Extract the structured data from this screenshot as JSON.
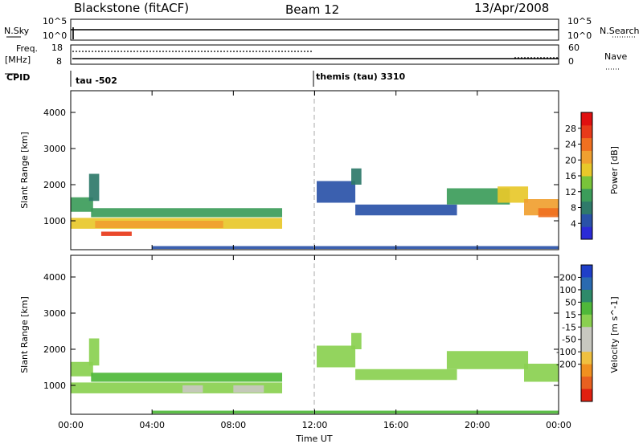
{
  "header": {
    "station": "Blackstone (fitACF)",
    "beam": "Beam 12",
    "date": "13/Apr/2008"
  },
  "summary_panels": {
    "nsky_label": "N.Sky",
    "nsky_ticks": [
      "10^5",
      "10^0"
    ],
    "nsearch_label": "N.Search",
    "nsearch_ticks": [
      "10^5",
      "10^0"
    ],
    "freq_label": "Freq.",
    "freq_unit": "[MHz]",
    "freq_ticks": [
      "18",
      "8"
    ],
    "nave_label": "Nave",
    "nave_ticks": [
      "60",
      "0"
    ],
    "cpid_label": "CPID"
  },
  "cpid_segments": [
    {
      "label": "tau -502",
      "start_hour": 0
    },
    {
      "label": "themis (tau) 3310",
      "start_hour": 12
    }
  ],
  "colors": {
    "power_scale": [
      "#2b2bd6",
      "#2a52a8",
      "#2f7a6a",
      "#3c9c5a",
      "#79c43a",
      "#e8c82a",
      "#f0a030",
      "#f07020",
      "#e83a1a",
      "#e01010"
    ],
    "velocity_scale": [
      "#1f3fc8",
      "#2a6ab0",
      "#2e8a6a",
      "#4fb83a",
      "#8ad050",
      "#c8c8c0",
      "#c8c8c0",
      "#f0c040",
      "#f09020",
      "#e86020",
      "#e02010"
    ]
  },
  "chart_data": [
    {
      "type": "heatmap",
      "name": "power",
      "ylabel": "Slant Range [km]",
      "y_ticks": [
        1000,
        2000,
        3000,
        4000
      ],
      "ylim": [
        200,
        4600
      ],
      "xlim": [
        0,
        24
      ],
      "colorbar_label": "Power [dB]",
      "colorbar_ticks": [
        4,
        8,
        12,
        16,
        20,
        24,
        28
      ],
      "colorbar_range": [
        0,
        32
      ],
      "blobs": [
        {
          "h0": 0.0,
          "h1": 1.1,
          "r0": 1250,
          "r1": 1650,
          "v": 10
        },
        {
          "h0": 0.9,
          "h1": 1.4,
          "r0": 1550,
          "r1": 2300,
          "v": 8
        },
        {
          "h0": 1.0,
          "h1": 10.4,
          "r0": 1100,
          "r1": 1350,
          "v": 12
        },
        {
          "h0": 0.0,
          "h1": 10.4,
          "r0": 780,
          "r1": 1080,
          "v": 18
        },
        {
          "h0": 1.2,
          "h1": 7.5,
          "r0": 800,
          "r1": 1000,
          "v": 22
        },
        {
          "h0": 1.5,
          "h1": 3.0,
          "r0": 580,
          "r1": 700,
          "v": 26
        },
        {
          "h0": 12.1,
          "h1": 14.0,
          "r0": 1500,
          "r1": 2100,
          "v": 6
        },
        {
          "h0": 13.8,
          "h1": 14.3,
          "r0": 2000,
          "r1": 2450,
          "v": 7
        },
        {
          "h0": 14.0,
          "h1": 19.0,
          "r0": 1150,
          "r1": 1450,
          "v": 6
        },
        {
          "h0": 18.5,
          "h1": 21.6,
          "r0": 1450,
          "r1": 1900,
          "v": 12
        },
        {
          "h0": 21.0,
          "h1": 22.5,
          "r0": 1500,
          "r1": 1950,
          "v": 16
        },
        {
          "h0": 22.3,
          "h1": 24.0,
          "r0": 1150,
          "r1": 1600,
          "v": 20
        },
        {
          "h0": 23.0,
          "h1": 24.0,
          "r0": 1100,
          "r1": 1350,
          "v": 24
        },
        {
          "h0": 4.0,
          "h1": 24.0,
          "r0": 220,
          "r1": 300,
          "v": 5
        }
      ]
    },
    {
      "type": "heatmap",
      "name": "velocity",
      "ylabel": "Slant Range [km]",
      "y_ticks": [
        1000,
        2000,
        3000,
        4000
      ],
      "ylim": [
        200,
        4600
      ],
      "xlim": [
        0,
        24
      ],
      "x_ticks": [
        "00:00",
        "04:00",
        "08:00",
        "12:00",
        "16:00",
        "20:00",
        "00:00"
      ],
      "xlabel": "Time UT",
      "colorbar_label": "Velocity [m s^-1]",
      "colorbar_ticks": [
        200,
        100,
        50,
        15,
        -15,
        -50,
        -100,
        -200
      ],
      "blobs": [
        {
          "h0": 0.0,
          "h1": 1.1,
          "r0": 1250,
          "r1": 1650,
          "v": 0
        },
        {
          "h0": 0.9,
          "h1": 1.4,
          "r0": 1550,
          "r1": 2300,
          "v": 0
        },
        {
          "h0": 1.0,
          "h1": 10.4,
          "r0": 1100,
          "r1": 1350,
          "v": 30
        },
        {
          "h0": 0.0,
          "h1": 10.4,
          "r0": 780,
          "r1": 1080,
          "v": 0
        },
        {
          "h0": 5.5,
          "h1": 6.5,
          "r0": 800,
          "r1": 1000,
          "v": -60
        },
        {
          "h0": 8.0,
          "h1": 9.5,
          "r0": 800,
          "r1": 1000,
          "v": -60
        },
        {
          "h0": 12.1,
          "h1": 14.0,
          "r0": 1500,
          "r1": 2100,
          "v": 0
        },
        {
          "h0": 13.8,
          "h1": 14.3,
          "r0": 2000,
          "r1": 2450,
          "v": 0
        },
        {
          "h0": 14.0,
          "h1": 19.0,
          "r0": 1150,
          "r1": 1450,
          "v": 0
        },
        {
          "h0": 18.5,
          "h1": 22.5,
          "r0": 1450,
          "r1": 1950,
          "v": 0
        },
        {
          "h0": 22.3,
          "h1": 24.0,
          "r0": 1100,
          "r1": 1600,
          "v": 0
        },
        {
          "h0": 4.0,
          "h1": 24.0,
          "r0": 220,
          "r1": 300,
          "v": 40
        }
      ]
    }
  ]
}
